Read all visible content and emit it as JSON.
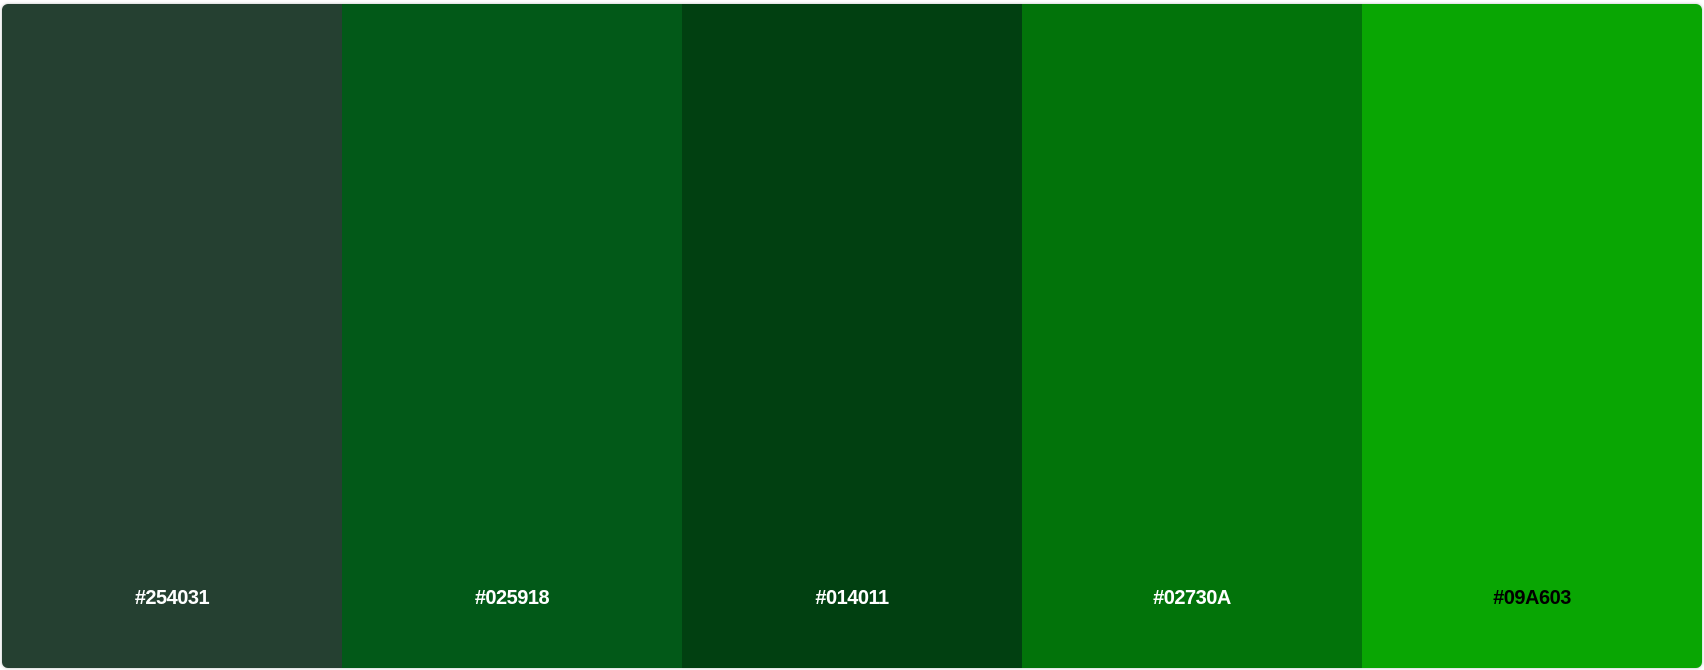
{
  "palette": {
    "swatches": [
      {
        "hex": "#254031",
        "label": "#254031",
        "text_color": "#ffffff"
      },
      {
        "hex": "#025918",
        "label": "#025918",
        "text_color": "#ffffff"
      },
      {
        "hex": "#014011",
        "label": "#014011",
        "text_color": "#ffffff"
      },
      {
        "hex": "#02730A",
        "label": "#02730A",
        "text_color": "#ffffff"
      },
      {
        "hex": "#09A603",
        "label": "#09A603",
        "text_color": "#000000"
      }
    ]
  }
}
